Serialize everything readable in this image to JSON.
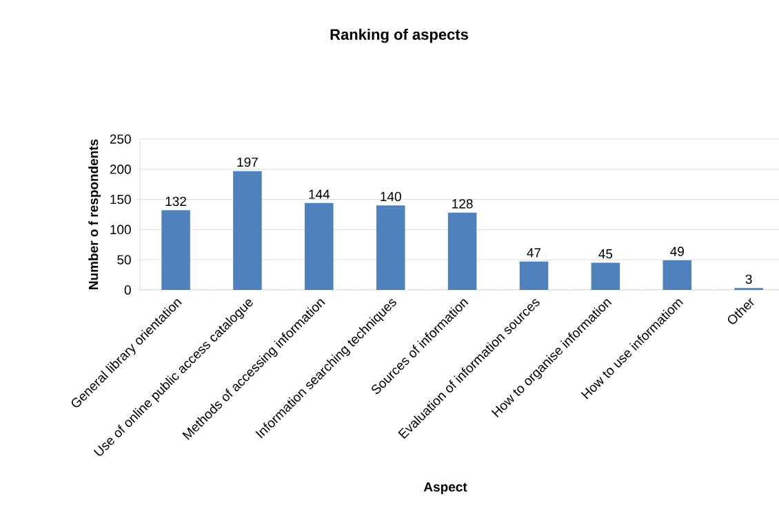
{
  "chart_data": {
    "type": "bar",
    "title": "Ranking of aspects",
    "xlabel": "Aspect",
    "ylabel": "Number o f respondents",
    "categories": [
      "General library orientation",
      "Use of online public access catalogue",
      "Methods of accessing information",
      "Information searching techniques",
      "Sources of information",
      "Evaluation of information sources",
      "How to organise information",
      "How to use informatiom",
      "Other"
    ],
    "values": [
      132,
      197,
      144,
      140,
      128,
      47,
      45,
      49,
      3
    ],
    "color": "#4f81bd",
    "ylim": [
      0,
      250
    ],
    "yticks": [
      0,
      50,
      100,
      150,
      200,
      250
    ],
    "grid": "y",
    "data_labels": true
  }
}
